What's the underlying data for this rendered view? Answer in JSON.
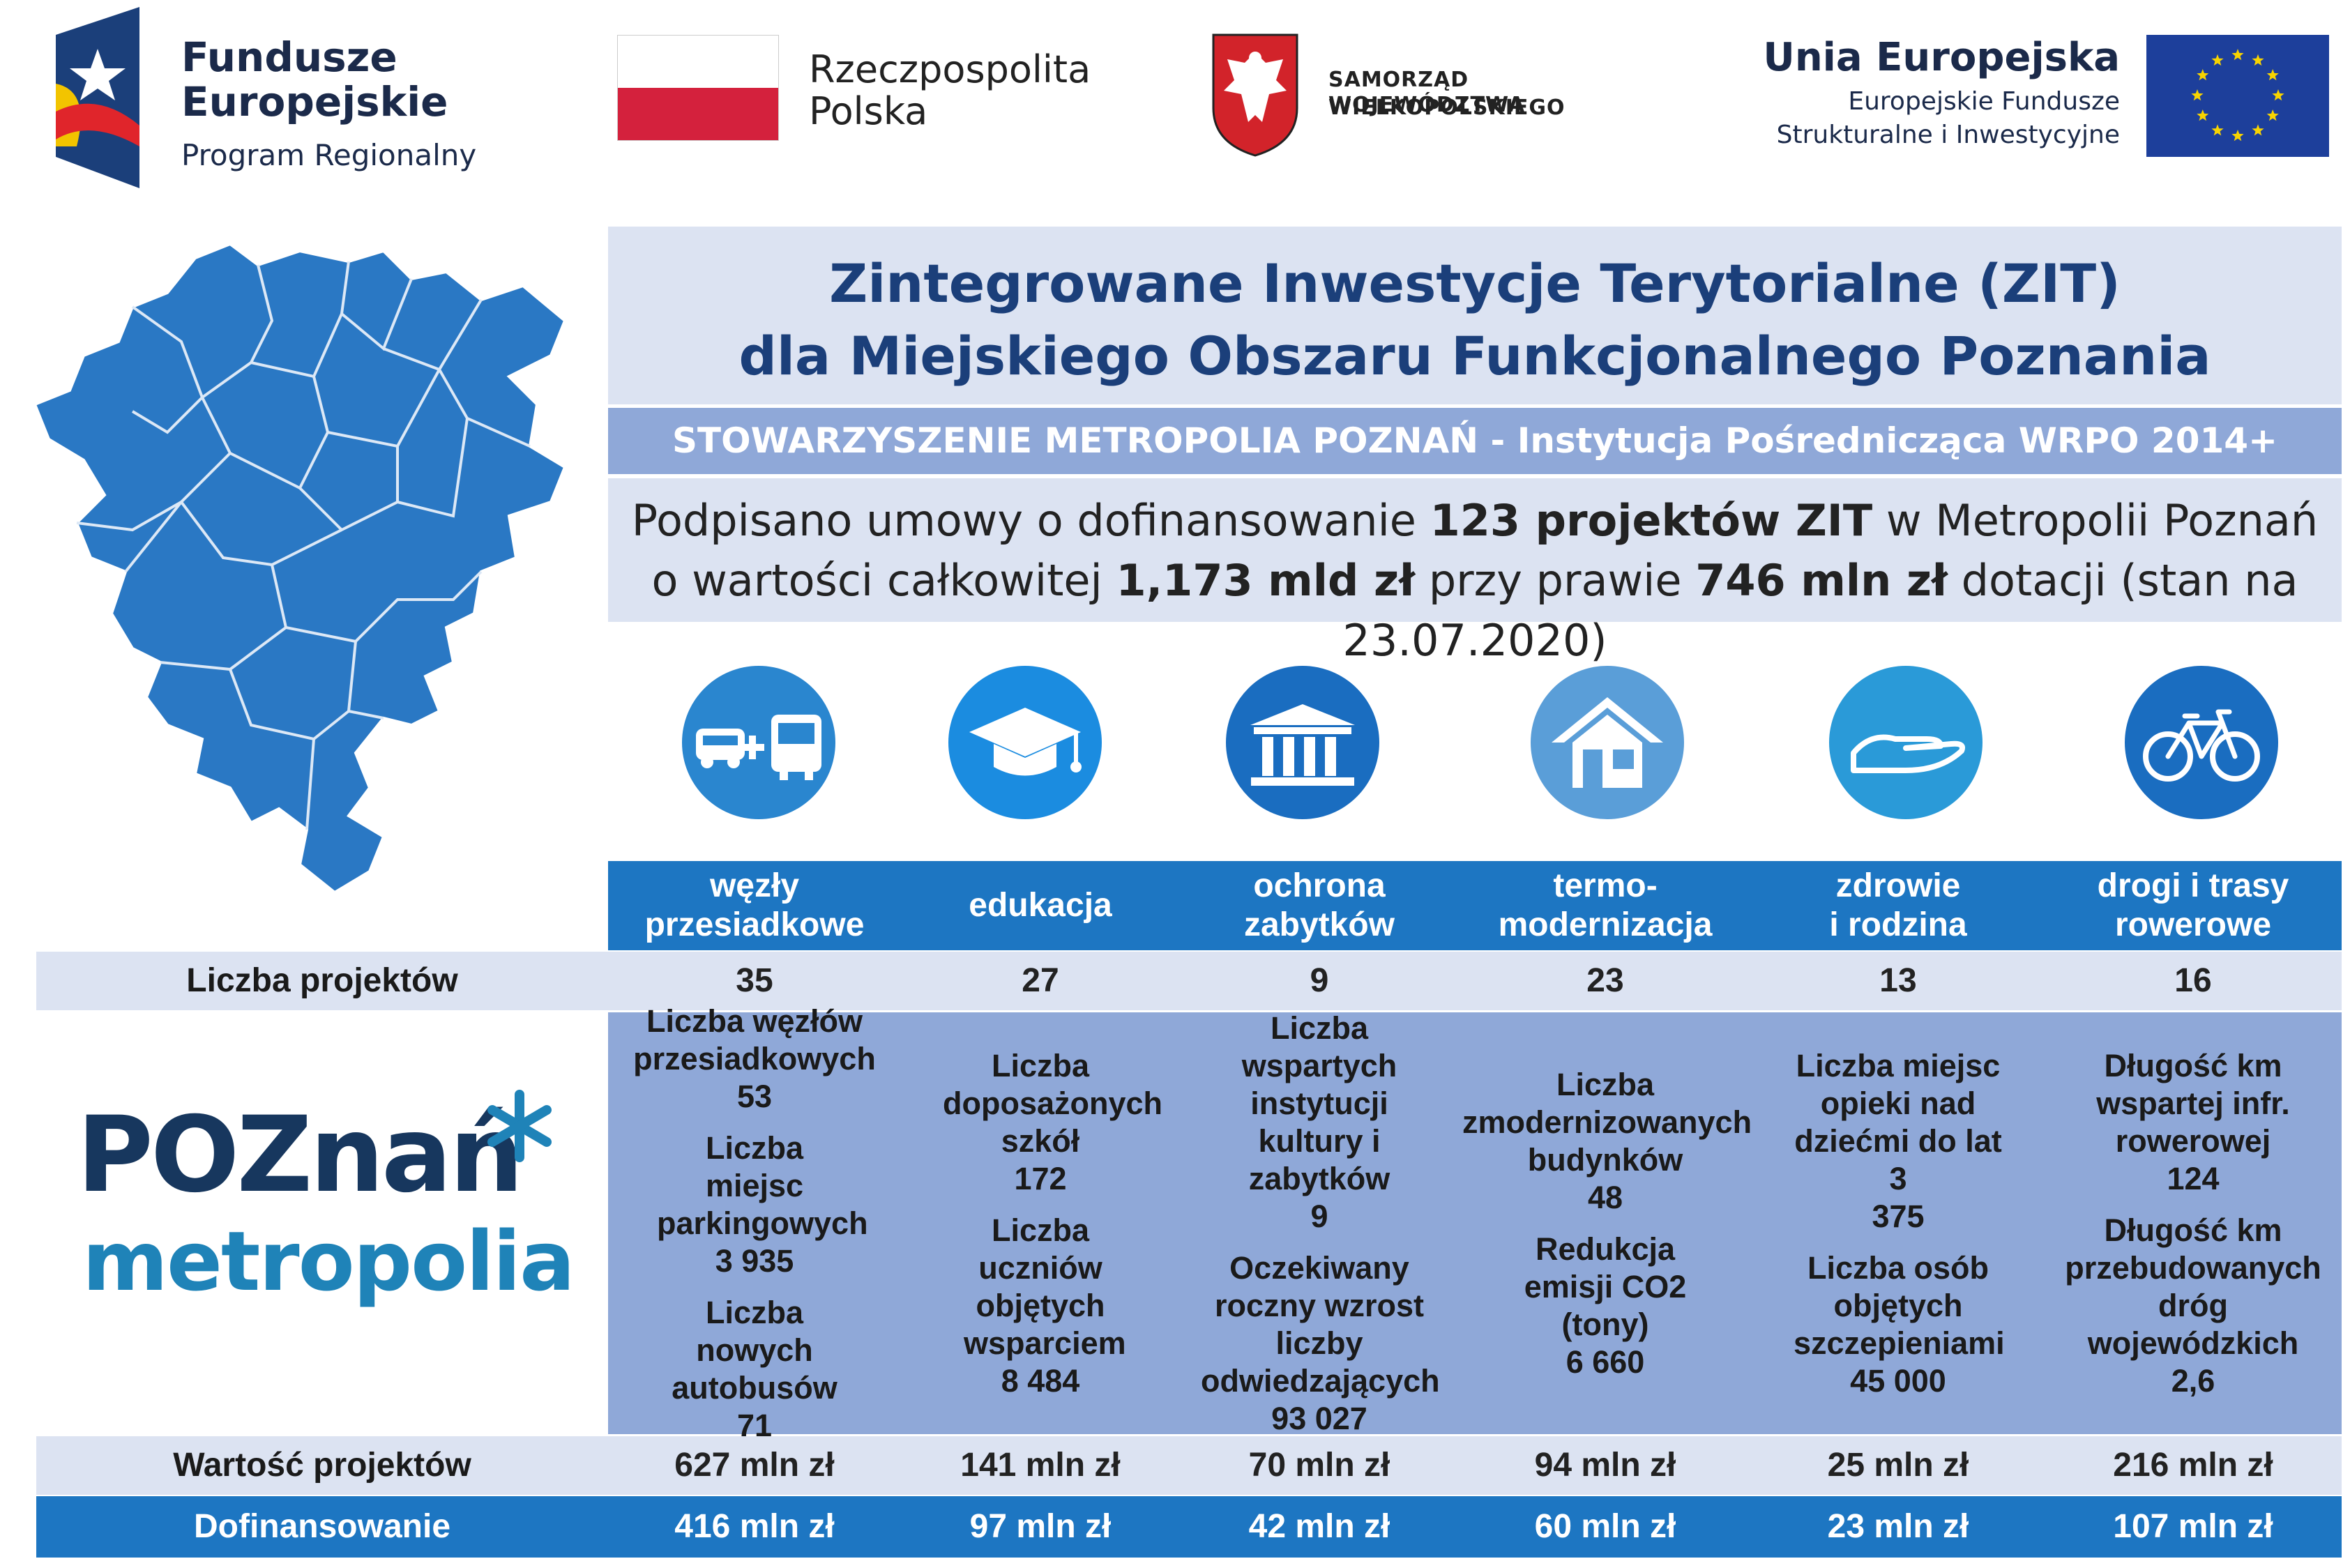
{
  "logos": {
    "fe_title_1": "Fundusze",
    "fe_title_2": "Europejskie",
    "fe_sub": "Program Regionalny",
    "rp_1": "Rzeczpospolita",
    "rp_2": "Polska",
    "sw_1": "SAMORZĄD WOJEWÓDZTWA",
    "sw_2": "WIELKOPOLSKIEGO",
    "ue_title": "Unia Europejska",
    "ue_sub_1": "Europejskie Fundusze",
    "ue_sub_2": "Strukturalne i Inwestycyjne"
  },
  "header": {
    "title_1": "Zintegrowane Inwestycje Terytorialne (ZIT)",
    "title_2": "dla Miejskiego Obszaru Funkcjonalnego Poznania",
    "institution": "STOWARZYSZENIE METROPOLIA POZNAŃ - Instytucja Pośrednicząca WRPO 2014+",
    "summary_a": "Podpisano umowy o dofinansowanie ",
    "summary_b": "123 projektów ZIT",
    "summary_c": " w Metropolii Poznań",
    "summary_d": "o wartości całkowitej ",
    "summary_e": "1,173 mld zł",
    "summary_f": " przy prawie ",
    "summary_g": "746 mln zł",
    "summary_h": " dotacji (stan na 23.07.2020)"
  },
  "icons": [
    "transfer-hub-icon",
    "graduation-cap-icon",
    "museum-icon",
    "house-icon",
    "helping-hand-icon",
    "bicycle-icon"
  ],
  "brand": {
    "poz_1": "POZnań",
    "poz_2": "metropolia",
    "colors": {
      "dark_blue": "#1d76c2",
      "light_row": "#dce3f2",
      "indicator_bg": "#8fa8d8",
      "title": "#1b3f7a"
    }
  },
  "table": {
    "label_count": "Liczba projektów",
    "label_value": "Wartość projektów",
    "label_funding": "Dofinansowanie",
    "categories": [
      {
        "name_1": "węzły",
        "name_2": "przesiadkowe",
        "count": "35",
        "value": "627 mln zł",
        "funding": "416 mln zł",
        "indicators": [
          {
            "label": "Liczba węzłów przesiadkowych",
            "val": "53"
          },
          {
            "label": "Liczba miejsc parkingowych",
            "val": "3 935"
          },
          {
            "label": "Liczba nowych autobusów",
            "val": "71"
          }
        ]
      },
      {
        "name_1": "edukacja",
        "name_2": "",
        "count": "27",
        "value": "141 mln zł",
        "funding": "97 mln zł",
        "indicators": [
          {
            "label": "Liczba doposażonych szkół",
            "val": "172"
          },
          {
            "label": "Liczba uczniów objętych wsparciem",
            "val": "8 484"
          }
        ]
      },
      {
        "name_1": "ochrona",
        "name_2": "zabytków",
        "count": "9",
        "value": "70 mln zł",
        "funding": "42 mln zł",
        "indicators": [
          {
            "label": "Liczba wspartych instytucji kultury i zabytków",
            "val": "9"
          },
          {
            "label": "Oczekiwany roczny wzrost liczby odwiedzających",
            "val": "93 027"
          }
        ]
      },
      {
        "name_1": "termo-",
        "name_2": "modernizacja",
        "count": "23",
        "value": "94 mln zł",
        "funding": "60 mln zł",
        "indicators": [
          {
            "label": "Liczba zmodernizowanych budynków",
            "val": "48"
          },
          {
            "label": "Redukcja emisji CO2 (tony)",
            "val": "6 660"
          }
        ]
      },
      {
        "name_1": "zdrowie",
        "name_2": "i rodzina",
        "count": "13",
        "value": "25 mln zł",
        "funding": "23 mln zł",
        "indicators": [
          {
            "label": "Liczba miejsc opieki nad dziećmi do lat 3",
            "val": "375"
          },
          {
            "label": "Liczba osób objętych szczepieniami",
            "val": "45 000"
          }
        ]
      },
      {
        "name_1": "drogi i trasy",
        "name_2": "rowerowe",
        "count": "16",
        "value": "216 mln zł",
        "funding": "107 mln zł",
        "indicators": [
          {
            "label": "Długość km wspartej infr. rowerowej",
            "val": "124"
          },
          {
            "label": "Długość km przebudowanych dróg wojewódzkich",
            "val": "2,6"
          }
        ]
      }
    ]
  }
}
